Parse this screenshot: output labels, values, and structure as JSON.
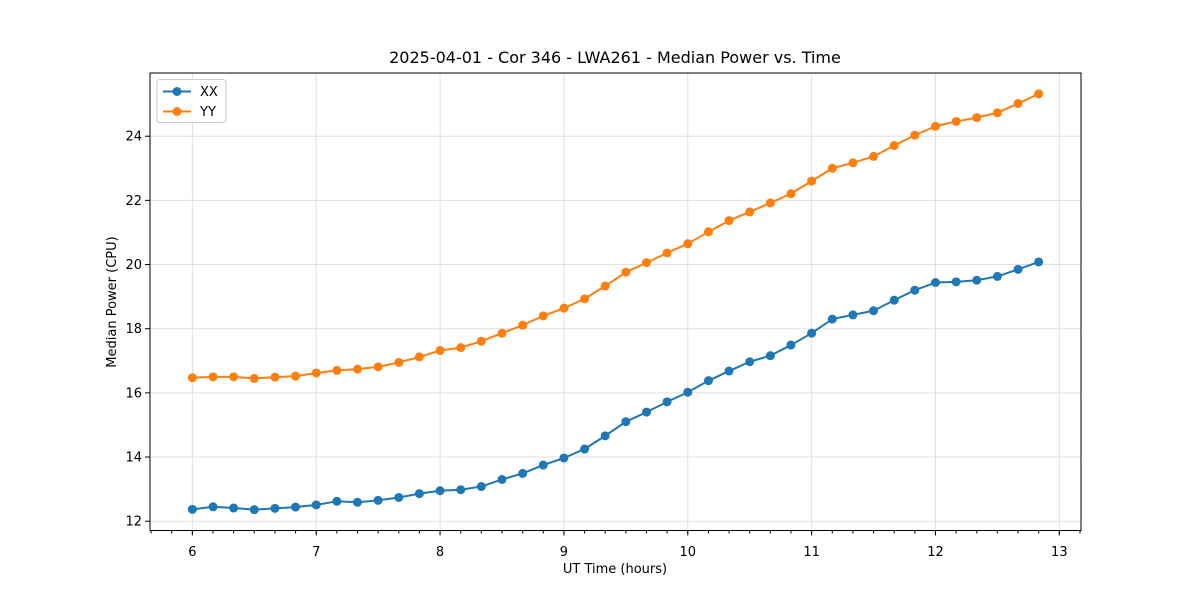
{
  "chart_data": {
    "type": "line",
    "title": "2025-04-01 - Cor 346 - LWA261 - Median Power vs. Time",
    "xlabel": "UT Time (hours)",
    "ylabel": "Median Power (CPU)",
    "x": [
      6.0,
      6.167,
      6.333,
      6.5,
      6.667,
      6.833,
      7.0,
      7.167,
      7.333,
      7.5,
      7.667,
      7.833,
      8.0,
      8.167,
      8.333,
      8.5,
      8.667,
      8.833,
      9.0,
      9.167,
      9.333,
      9.5,
      9.667,
      9.833,
      10.0,
      10.167,
      10.333,
      10.5,
      10.667,
      10.833,
      11.0,
      11.167,
      11.333,
      11.5,
      11.667,
      11.833,
      12.0,
      12.167,
      12.333,
      12.5,
      12.667,
      12.833
    ],
    "series": [
      {
        "name": "XX",
        "color": "#1f77b4",
        "values": [
          12.37,
          12.45,
          12.41,
          12.36,
          12.4,
          12.44,
          12.51,
          12.62,
          12.59,
          12.65,
          12.74,
          12.86,
          12.95,
          12.98,
          13.08,
          13.3,
          13.49,
          13.75,
          13.97,
          14.25,
          14.66,
          15.1,
          15.4,
          15.72,
          16.02,
          16.38,
          16.68,
          16.97,
          17.16,
          17.49,
          17.86,
          18.3,
          18.43,
          18.56,
          18.89,
          19.2,
          19.44,
          19.46,
          19.51,
          19.63,
          19.85,
          20.08
        ]
      },
      {
        "name": "YY",
        "color": "#ff7f0e",
        "values": [
          16.47,
          16.5,
          16.5,
          16.45,
          16.49,
          16.52,
          16.62,
          16.7,
          16.74,
          16.81,
          16.95,
          17.12,
          17.32,
          17.41,
          17.61,
          17.86,
          18.11,
          18.4,
          18.64,
          18.93,
          19.33,
          19.76,
          20.06,
          20.36,
          20.65,
          21.02,
          21.37,
          21.64,
          21.92,
          22.21,
          22.6,
          23.0,
          23.17,
          23.37,
          23.71,
          24.03,
          24.31,
          24.46,
          24.58,
          24.73,
          25.02,
          25.32
        ]
      }
    ],
    "xlim": [
      5.658,
      13.175
    ],
    "ylim": [
      11.71,
      25.97
    ],
    "xticks": [
      6,
      7,
      8,
      9,
      10,
      11,
      12,
      13
    ],
    "yticks": [
      12,
      14,
      16,
      18,
      20,
      22,
      24
    ],
    "x_minor_step": 0.1666667,
    "grid": "major",
    "grid_color": "#e0e0e0",
    "axis_color": "#000000",
    "background": "#ffffff",
    "legend_position": "upper-left",
    "marker": "circle",
    "marker_radius": 4.5,
    "line_width": 2
  }
}
